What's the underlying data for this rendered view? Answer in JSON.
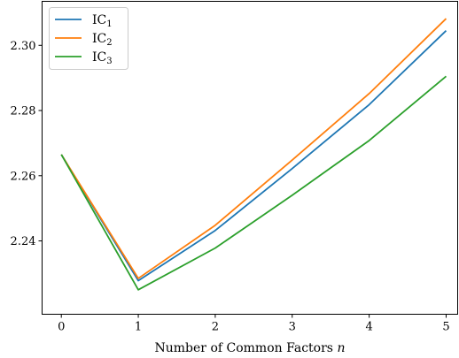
{
  "chart_data": {
    "type": "line",
    "x": [
      0,
      1,
      2,
      3,
      4,
      5
    ],
    "xlabel": "Number of Common Factors n",
    "ylabel": "",
    "xlim": [
      -0.25,
      5.15
    ],
    "ylim": [
      2.2175,
      2.3135
    ],
    "xticks": [
      "0",
      "1",
      "2",
      "3",
      "4",
      "5"
    ],
    "yticks": [
      "2.24",
      "2.26",
      "2.28",
      "2.30"
    ],
    "ytick_values": [
      2.24,
      2.26,
      2.28,
      2.3
    ],
    "legend_placement": "top-left",
    "grid": false,
    "series": [
      {
        "name": "IC",
        "subscript": "1",
        "color": "#1f77b4",
        "values": [
          2.2665,
          2.2278,
          2.2432,
          2.2622,
          2.2818,
          2.3045
        ]
      },
      {
        "name": "IC",
        "subscript": "2",
        "color": "#ff7f0e",
        "values": [
          2.2665,
          2.2285,
          2.2448,
          2.2648,
          2.2852,
          2.3082
        ]
      },
      {
        "name": "IC",
        "subscript": "3",
        "color": "#2ca02c",
        "values": [
          2.2665,
          2.225,
          2.2378,
          2.254,
          2.2708,
          2.2905
        ]
      }
    ]
  }
}
